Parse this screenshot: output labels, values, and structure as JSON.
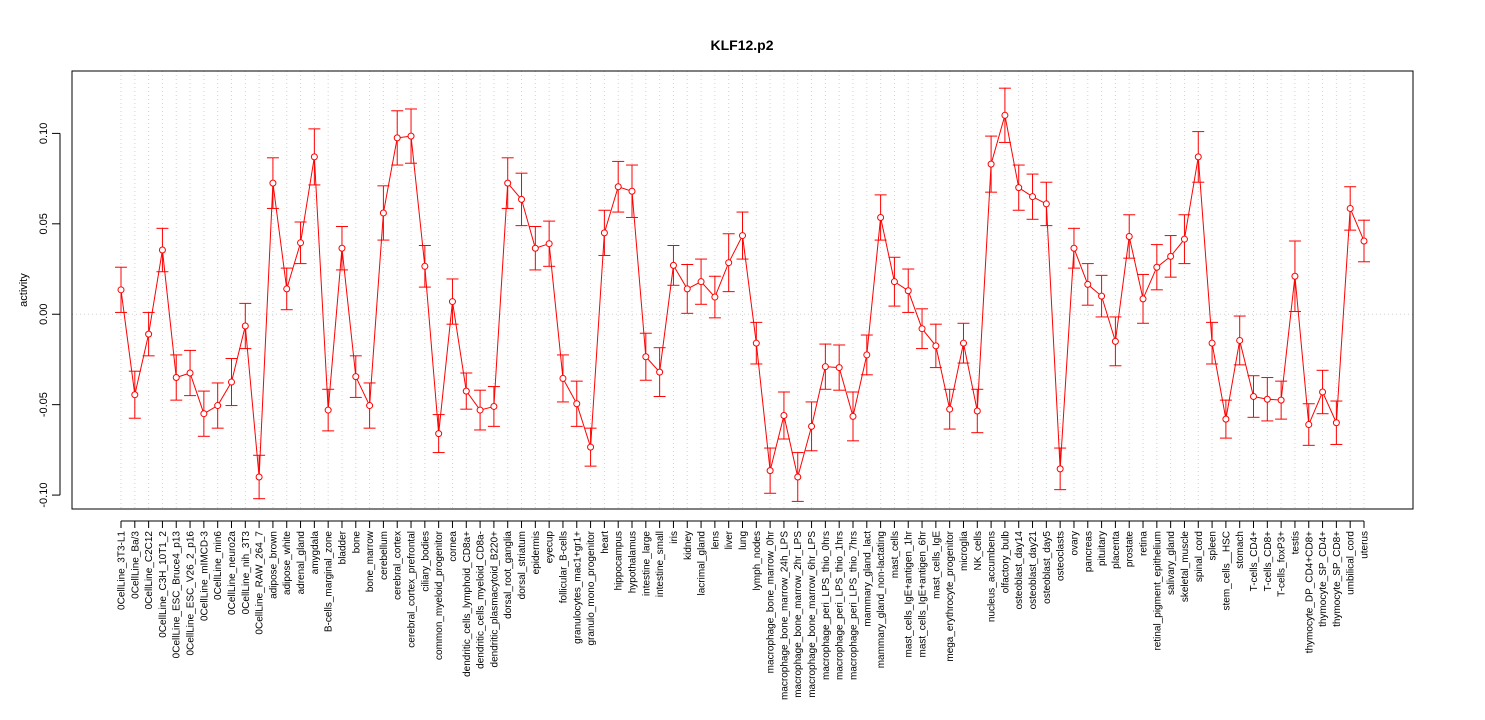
{
  "chart_data": {
    "type": "line",
    "title": "KLF12.p2",
    "xlabel": "",
    "ylabel": "activity",
    "ylim": [
      -0.1077,
      0.1345
    ],
    "yticks": [
      -0.1,
      -0.05,
      0.0,
      0.05,
      0.1
    ],
    "ytick_labels": [
      "-0.10",
      "-0.05",
      "0.00",
      "0.05",
      "0.10"
    ],
    "grid": true,
    "line_color": "#ff0000",
    "grid_color": "#d3d3d3",
    "categories": [
      "0CellLine_3T3-L1",
      "0CellLine_Ba/3",
      "0CellLine_C2C12",
      "0CellLine_C3H_10T1_2",
      "0CellLine_ESC_Bruce4_p13",
      "0CellLine_ESC_V26_2_p16",
      "0CellLine_mIMCD-3",
      "0CellLine_min6",
      "0CellLine_neuro2a",
      "0CellLine_nih_3T3",
      "0CellLine_RAW_264_7",
      "adipose_brown",
      "adipose_white",
      "adrenal_gland",
      "amygdala",
      "B-cells_marginal_zone",
      "bladder",
      "bone",
      "bone_marrow",
      "cerebellum",
      "cerebral_cortex",
      "cerebral_cortex_prefrontal",
      "ciliary_bodies",
      "common_myeloid_progenitor",
      "cornea",
      "dendritic_cells_lymphoid_CD8a+",
      "dendritic_cells_myeloid_CD8a-",
      "dendritic_plasmacytoid_B220+",
      "dorsal_root_ganglia",
      "dorsal_striatum",
      "epidermis",
      "eyecup",
      "follicular_B-cells",
      "granulocytes_mac1+gr1+",
      "granulo_mono_progenitor",
      "heart",
      "hippocampus",
      "hypothalamus",
      "intestine_large",
      "intestine_small",
      "iris",
      "kidney",
      "lacrimal_gland",
      "lens",
      "liver",
      "lung",
      "lymph_nodes",
      "macrophage_bone_marrow_0hr",
      "macrophage_bone_marrow_24h_LPS",
      "macrophage_bone_marrow_2hr_LPS",
      "macrophage_bone_marrow_6hr_LPS",
      "macrophage_peri_LPS_thio_0hrs",
      "macrophage_peri_LPS_thio_1hrs",
      "macrophage_peri_LPS_thio_7hrs",
      "mammary_gland_lact",
      "mammary_gland_non-lactating",
      "mast_cells",
      "mast_cells_IgE+antigen_1hr",
      "mast_cells_IgE+antigen_6hr",
      "mast_cells_IgE",
      "mega_erythrocyte_progenitor",
      "microglia",
      "NK_cells",
      "nucleus_accumbens",
      "olfactory_bulb",
      "osteoblast_day14",
      "osteoblast_day21",
      "osteoblast_day5",
      "osteoclasts",
      "ovary",
      "pancreas",
      "pituitary",
      "placenta",
      "prostate",
      "retina",
      "retinal_pigment_epithelium",
      "salivary_gland",
      "skeletal_muscle",
      "spinal_cord",
      "spleen",
      "stem_cells__HSC",
      "stomach",
      "T-cells_CD4+",
      "T-cells_CD8+",
      "T-cells_foxP3+",
      "testis",
      "thymocyte_DP_CD4+CD8+",
      "thymocyte_SP_CD4+",
      "thymocyte_SP_CD8+",
      "umbilical_cord",
      "uterus"
    ],
    "series": [
      {
        "values": [
          0.0135,
          -0.0445,
          -0.011,
          0.0355,
          -0.035,
          -0.0325,
          -0.055,
          -0.0505,
          -0.0375,
          -0.0065,
          -0.09,
          0.0725,
          0.014,
          0.0395,
          0.087,
          -0.053,
          0.0365,
          -0.0345,
          -0.0505,
          0.056,
          0.0975,
          0.0985,
          0.0265,
          -0.066,
          0.007,
          -0.0425,
          -0.053,
          -0.051,
          0.0725,
          0.0635,
          0.0365,
          0.039,
          -0.0355,
          -0.0495,
          -0.0735,
          0.045,
          0.0705,
          0.068,
          -0.0235,
          -0.032,
          0.027,
          0.014,
          0.018,
          0.0095,
          0.0285,
          0.0435,
          -0.016,
          -0.0865,
          -0.056,
          -0.09,
          -0.062,
          -0.029,
          -0.0295,
          -0.0565,
          -0.0225,
          0.0535,
          0.018,
          0.013,
          -0.008,
          -0.0175,
          -0.0525,
          -0.016,
          -0.0535,
          0.083,
          0.11,
          0.07,
          0.065,
          0.061,
          -0.0855,
          0.0365,
          0.0165,
          0.01,
          -0.015,
          0.043,
          0.0085,
          0.026,
          0.032,
          0.0415,
          0.087,
          -0.016,
          -0.058,
          -0.0145,
          -0.0455,
          -0.047,
          -0.0475,
          0.021,
          -0.061,
          -0.043,
          -0.06,
          0.0585,
          0.0405
        ],
        "errors": [
          0.0125,
          0.013,
          0.012,
          0.012,
          0.0125,
          0.0125,
          0.0125,
          0.0125,
          0.013,
          0.0125,
          0.012,
          0.014,
          0.0115,
          0.0115,
          0.0155,
          0.0115,
          0.012,
          0.0115,
          0.0125,
          0.015,
          0.015,
          0.015,
          0.0115,
          0.0105,
          0.0125,
          0.01,
          0.011,
          0.011,
          0.014,
          0.0145,
          0.012,
          0.0125,
          0.013,
          0.0125,
          0.0105,
          0.0125,
          0.014,
          0.0145,
          0.013,
          0.0135,
          0.011,
          0.0135,
          0.0125,
          0.0115,
          0.016,
          0.013,
          0.0115,
          0.0125,
          0.013,
          0.0135,
          0.0135,
          0.0125,
          0.0125,
          0.0135,
          0.011,
          0.0125,
          0.0135,
          0.012,
          0.011,
          0.012,
          0.011,
          0.011,
          0.012,
          0.0155,
          0.015,
          0.0125,
          0.0125,
          0.012,
          0.0115,
          0.011,
          0.0115,
          0.0115,
          0.0135,
          0.012,
          0.0135,
          0.0125,
          0.0115,
          0.0135,
          0.014,
          0.0115,
          0.0105,
          0.0135,
          0.0115,
          0.012,
          0.0105,
          0.0195,
          0.0115,
          0.012,
          0.012,
          0.012,
          0.0115
        ]
      }
    ]
  }
}
